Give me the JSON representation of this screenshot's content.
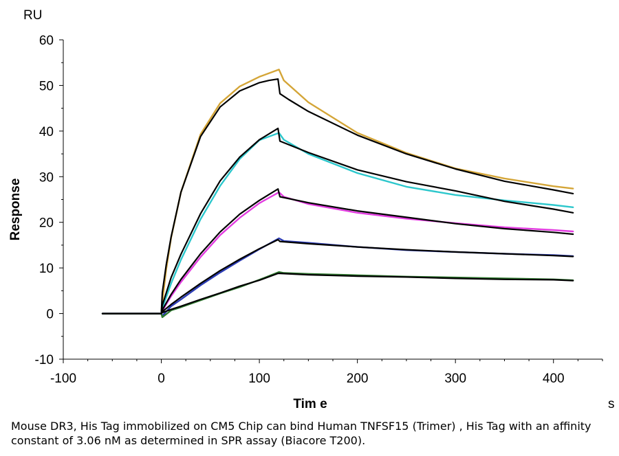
{
  "chart_data": {
    "type": "line",
    "title": "",
    "xlabel": "Tim e",
    "ylabel": "Response",
    "x_unit": "s",
    "y_unit": "RU",
    "xlim": [
      -100,
      450
    ],
    "ylim": [
      -10,
      60
    ],
    "x_ticks": [
      -100,
      0,
      100,
      200,
      300,
      400
    ],
    "y_ticks": [
      -10,
      0,
      10,
      20,
      30,
      40,
      50,
      60
    ],
    "grid": false,
    "legend": "none",
    "association_end": 120,
    "series": [
      {
        "color": "#D4A537",
        "kind": "data",
        "x": [
          -60,
          -20,
          0,
          1,
          5,
          10,
          20,
          40,
          60,
          80,
          100,
          120,
          125,
          150,
          200,
          250,
          300,
          350,
          400,
          420
        ],
        "y": [
          0,
          0,
          0,
          2.5,
          9.7,
          16.6,
          26.6,
          39.3,
          46.1,
          49.8,
          51.9,
          53.5,
          51.1,
          46.3,
          39.6,
          35.2,
          31.8,
          29.6,
          27.9,
          27.4
        ]
      },
      {
        "color": "#000000",
        "kind": "fit",
        "x": [
          -60,
          -20,
          0,
          1,
          5,
          10,
          20,
          40,
          60,
          80,
          100,
          110,
          119,
          121,
          130,
          150,
          200,
          250,
          300,
          350,
          400,
          420
        ],
        "y": [
          0,
          0,
          0,
          4.6,
          10.7,
          16.8,
          26.6,
          38.8,
          45.3,
          48.8,
          50.6,
          51.1,
          51.4,
          48.2,
          46.9,
          44.3,
          39.1,
          35.0,
          31.7,
          29.0,
          27.1,
          26.3
        ]
      },
      {
        "color": "#2CC7CC",
        "kind": "data",
        "x": [
          -60,
          -20,
          0,
          1,
          10,
          20,
          40,
          60,
          80,
          100,
          120,
          125,
          150,
          200,
          250,
          300,
          350,
          400,
          420
        ],
        "y": [
          0,
          0,
          0,
          1.2,
          6.6,
          11.8,
          20.7,
          28.0,
          33.9,
          38.0,
          39.6,
          38.1,
          35.0,
          30.8,
          27.8,
          26.0,
          24.8,
          23.8,
          23.3
        ]
      },
      {
        "color": "#000000",
        "kind": "fit",
        "x": [
          -60,
          -20,
          0,
          1,
          10,
          20,
          40,
          60,
          80,
          100,
          119,
          121,
          150,
          200,
          250,
          300,
          350,
          400,
          420
        ],
        "y": [
          0,
          0,
          0,
          1.8,
          7.9,
          13.0,
          21.9,
          29.1,
          34.3,
          38.1,
          40.6,
          37.8,
          35.3,
          31.5,
          28.9,
          26.9,
          24.6,
          22.9,
          22.1
        ]
      },
      {
        "color": "#E23CE0",
        "kind": "data",
        "x": [
          -60,
          -20,
          0,
          1,
          10,
          20,
          40,
          60,
          80,
          100,
          120,
          125,
          150,
          200,
          250,
          300,
          350,
          400,
          420
        ],
        "y": [
          0,
          0,
          0,
          0.6,
          3.8,
          6.9,
          12.4,
          17.2,
          21.0,
          24.2,
          26.6,
          25.6,
          24.0,
          22.1,
          20.8,
          19.8,
          18.9,
          18.3,
          18.0
        ]
      },
      {
        "color": "#000000",
        "kind": "fit",
        "x": [
          -60,
          -20,
          0,
          1,
          10,
          20,
          40,
          60,
          80,
          100,
          119,
          121,
          150,
          200,
          250,
          300,
          350,
          400,
          420
        ],
        "y": [
          0,
          0,
          0,
          0.8,
          4.2,
          7.5,
          13.1,
          17.9,
          21.8,
          24.8,
          27.3,
          25.6,
          24.3,
          22.5,
          21.1,
          19.7,
          18.6,
          17.8,
          17.4
        ]
      },
      {
        "color": "#2B3BB5",
        "kind": "data",
        "x": [
          -60,
          -20,
          0,
          1,
          10,
          20,
          40,
          60,
          80,
          100,
          120,
          125,
          150,
          200,
          250,
          300,
          350,
          400,
          420
        ],
        "y": [
          0,
          0,
          0,
          -0.5,
          1.6,
          3.1,
          6.2,
          9.0,
          11.6,
          14.1,
          16.5,
          15.9,
          15.5,
          14.6,
          13.9,
          13.5,
          13.1,
          12.8,
          12.6
        ]
      },
      {
        "color": "#000000",
        "kind": "fit",
        "x": [
          -60,
          -20,
          0,
          1,
          10,
          20,
          40,
          60,
          80,
          100,
          119,
          121,
          150,
          200,
          250,
          300,
          350,
          400,
          420
        ],
        "y": [
          0,
          0,
          0,
          0.4,
          2.0,
          3.6,
          6.6,
          9.4,
          11.9,
          14.2,
          16.2,
          15.8,
          15.3,
          14.6,
          14.0,
          13.5,
          13.1,
          12.7,
          12.5
        ]
      },
      {
        "color": "#2F7A2F",
        "kind": "data",
        "x": [
          -60,
          -20,
          0,
          1,
          10,
          20,
          40,
          60,
          80,
          100,
          120,
          125,
          150,
          200,
          250,
          300,
          350,
          400,
          420
        ],
        "y": [
          0,
          0,
          0,
          -0.8,
          0.7,
          1.4,
          2.9,
          4.4,
          5.8,
          7.4,
          9.1,
          8.9,
          8.7,
          8.4,
          8.1,
          7.9,
          7.7,
          7.5,
          7.3
        ]
      },
      {
        "color": "#000000",
        "kind": "fit",
        "x": [
          -60,
          -20,
          0,
          1,
          10,
          20,
          40,
          60,
          80,
          100,
          119,
          121,
          150,
          200,
          250,
          300,
          350,
          400,
          420
        ],
        "y": [
          0,
          0,
          0,
          0.2,
          0.9,
          1.6,
          3.1,
          4.5,
          6.0,
          7.3,
          8.8,
          8.8,
          8.5,
          8.2,
          8.0,
          7.7,
          7.5,
          7.4,
          7.2
        ]
      }
    ]
  },
  "caption": "Mouse DR3, His Tag immobilized on CM5 Chip can bind Human TNFSF15 (Trimer) , His Tag with an affinity constant of 3.06 nM as determined in SPR assay (Biacore T200)."
}
